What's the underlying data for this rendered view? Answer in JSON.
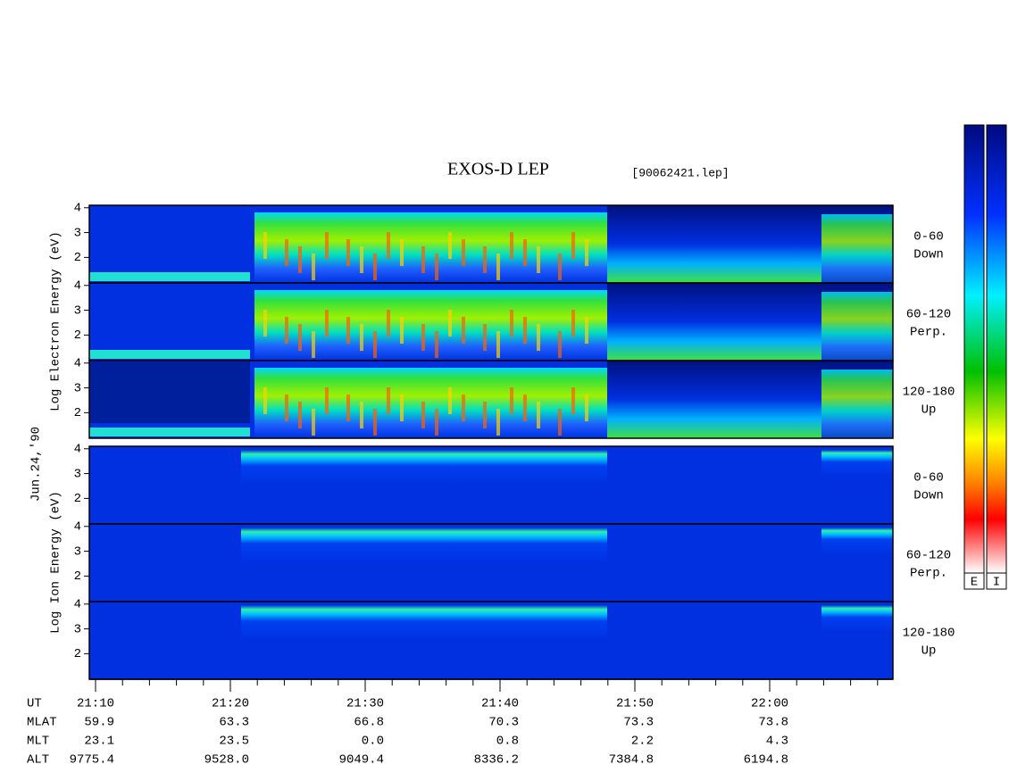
{
  "title": "EXOS-D LEP",
  "file": "[90062421.lep]",
  "date_label": "Jun.24,'90",
  "electron_axis_label": "Log Electron Energy (eV)",
  "ion_axis_label": "Log Ion Energy (eV)",
  "ylim": [
    0.97,
    4.1
  ],
  "yticks": [
    2,
    3,
    4
  ],
  "panels": [
    {
      "species": "electron",
      "angle": "0-60",
      "direction": "Down"
    },
    {
      "species": "electron",
      "angle": "60-120",
      "direction": "Perp."
    },
    {
      "species": "electron",
      "angle": "120-180",
      "direction": "Up"
    },
    {
      "species": "ion",
      "angle": "0-60",
      "direction": "Down"
    },
    {
      "species": "ion",
      "angle": "60-120",
      "direction": "Perp."
    },
    {
      "species": "ion",
      "angle": "120-180",
      "direction": "Up"
    }
  ],
  "colorbar_labels": [
    "E",
    "I"
  ],
  "orbit": {
    "labels": [
      "UT",
      "MLAT",
      "MLT",
      "ALT"
    ],
    "rows": [
      [
        "21:10",
        "21:20",
        "21:30",
        "21:40",
        "21:50",
        "22:00"
      ],
      [
        "59.9",
        "63.3",
        "66.8",
        "70.3",
        "73.3",
        "73.8"
      ],
      [
        "23.1",
        "23.5",
        "0.0",
        "0.8",
        "2.2",
        "4.3"
      ],
      [
        "9775.4",
        "9528.0",
        "9049.4",
        "8336.2",
        "7384.8",
        "6194.8"
      ]
    ]
  }
}
